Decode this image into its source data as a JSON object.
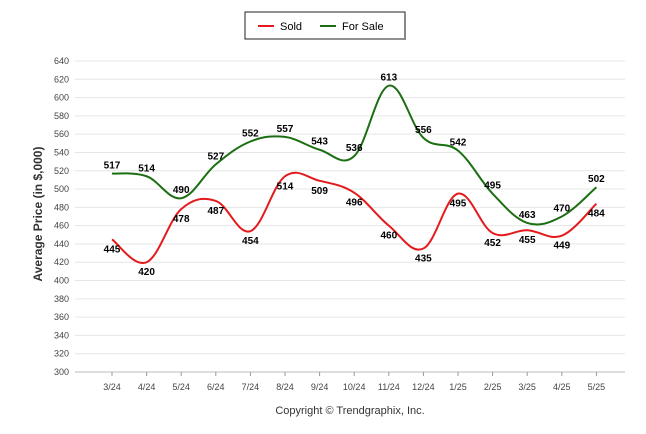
{
  "chart_data": {
    "type": "line",
    "ylabel": "Average Price (in $,000)",
    "ylim": [
      300,
      640
    ],
    "y_ticks": [
      300,
      320,
      340,
      360,
      380,
      400,
      420,
      440,
      460,
      480,
      500,
      520,
      540,
      560,
      580,
      600,
      620,
      640
    ],
    "categories": [
      "3/24",
      "4/24",
      "5/24",
      "6/24",
      "7/24",
      "8/24",
      "9/24",
      "10/24",
      "11/24",
      "12/24",
      "1/25",
      "2/25",
      "3/25",
      "4/25",
      "5/25"
    ],
    "grid": true,
    "legend_position": "top-center",
    "series": [
      {
        "name": "Sold",
        "color": "#e41a1c",
        "values": [
          445,
          420,
          478,
          487,
          454,
          514,
          509,
          496,
          460,
          435,
          495,
          452,
          455,
          449,
          484
        ]
      },
      {
        "name": "For Sale",
        "color": "#1b6e12",
        "values": [
          517,
          514,
          490,
          527,
          552,
          557,
          543,
          536,
          613,
          556,
          542,
          495,
          463,
          470,
          502
        ]
      }
    ]
  },
  "footer": "Copyright © Trendgraphix, Inc."
}
